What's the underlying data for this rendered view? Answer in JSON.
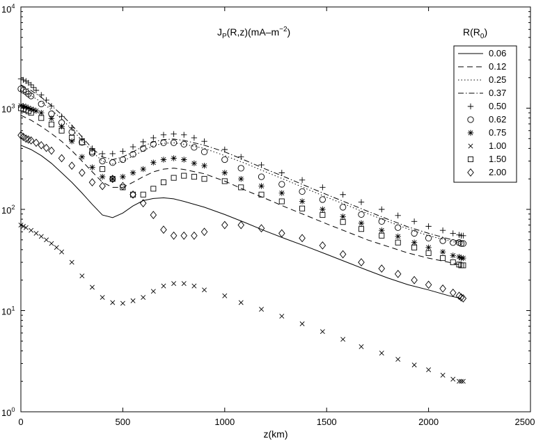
{
  "chart_data": {
    "type": "line",
    "title_main": "J",
    "title_sub": "P",
    "title_rest": "(R,z)(mA–m",
    "title_sup": "−2",
    "title_close": ")",
    "xlabel": "z(km)",
    "ylabel": "",
    "xlim": [
      0,
      2500
    ],
    "ylim": [
      1,
      10000
    ],
    "yscale": "log",
    "x_ticks": [
      "0",
      "500",
      "1000",
      "1500",
      "2000",
      "2500"
    ],
    "y_tick_base": "10",
    "y_tick_exps": [
      "0",
      "1",
      "2",
      "3",
      "4"
    ],
    "grid": false,
    "legend_position": "top-right",
    "legend_title_main": "R(R",
    "legend_title_sub": "0",
    "legend_title_close": ")",
    "series": [
      {
        "name": "0.06",
        "style": "solid",
        "x": [
          0,
          50,
          100,
          150,
          200,
          250,
          300,
          350,
          400,
          450,
          500,
          550,
          600,
          650,
          700,
          750,
          800,
          900,
          1000,
          1100,
          1200,
          1300,
          1400,
          1500,
          1600,
          1700,
          1800,
          1900,
          2000,
          2100,
          2160
        ],
        "y": [
          430,
          390,
          340,
          285,
          230,
          185,
          145,
          112,
          88,
          83,
          92,
          108,
          122,
          128,
          130,
          127,
          120,
          105,
          89,
          74,
          61,
          51,
          43,
          36,
          30,
          25,
          21,
          18,
          16,
          14,
          13.2
        ]
      },
      {
        "name": "0.12",
        "style": "dashed",
        "x": [
          0,
          50,
          100,
          150,
          200,
          250,
          300,
          350,
          400,
          450,
          500,
          550,
          600,
          650,
          700,
          750,
          800,
          900,
          1000,
          1100,
          1200,
          1300,
          1400,
          1500,
          1600,
          1700,
          1800,
          1900,
          2000,
          2100,
          2160
        ],
        "y": [
          850,
          760,
          660,
          560,
          470,
          380,
          300,
          235,
          185,
          165,
          165,
          185,
          210,
          235,
          250,
          255,
          248,
          225,
          190,
          155,
          128,
          105,
          87,
          72,
          60,
          50,
          43,
          37,
          33,
          30,
          28
        ]
      },
      {
        "name": "0.25",
        "style": "dotted",
        "x": [
          0,
          50,
          100,
          150,
          200,
          250,
          300,
          350,
          400,
          450,
          500,
          550,
          600,
          650,
          700,
          750,
          800,
          900,
          1000,
          1100,
          1200,
          1300,
          1400,
          1500,
          1600,
          1700,
          1800,
          1900,
          2000,
          2100,
          2160
        ],
        "y": [
          1500,
          1330,
          1150,
          960,
          780,
          620,
          480,
          370,
          300,
          280,
          300,
          335,
          380,
          425,
          450,
          455,
          440,
          400,
          340,
          285,
          235,
          195,
          160,
          132,
          110,
          91,
          76,
          64,
          55,
          49,
          46
        ]
      },
      {
        "name": "0.37",
        "style": "dashdot",
        "x": [
          0,
          50,
          100,
          150,
          200,
          250,
          300,
          350,
          400,
          450,
          500,
          550,
          600,
          650,
          700,
          750,
          800,
          900,
          1000,
          1100,
          1200,
          1300,
          1400,
          1500,
          1600,
          1700,
          1800,
          1900,
          2000,
          2100,
          2160
        ],
        "y": [
          1700,
          1500,
          1280,
          1060,
          860,
          680,
          520,
          400,
          330,
          310,
          330,
          370,
          420,
          465,
          490,
          495,
          480,
          430,
          370,
          305,
          250,
          207,
          170,
          140,
          116,
          96,
          80,
          67,
          58,
          51,
          48
        ]
      },
      {
        "name": "0.50",
        "marker": "+",
        "x": [
          0,
          12,
          25,
          37,
          50,
          62,
          75,
          100,
          125,
          150,
          200,
          250,
          300,
          350,
          400,
          450,
          500,
          550,
          600,
          650,
          700,
          750,
          800,
          850,
          900,
          1000,
          1080,
          1180,
          1280,
          1380,
          1480,
          1580,
          1670,
          1770,
          1850,
          1930,
          2000,
          2070,
          2120,
          2150,
          2160,
          2170
        ],
        "y": [
          1950,
          1900,
          1850,
          1780,
          1700,
          1600,
          1500,
          1350,
          1200,
          1050,
          830,
          640,
          500,
          400,
          355,
          355,
          375,
          415,
          465,
          510,
          545,
          555,
          545,
          510,
          470,
          390,
          330,
          275,
          230,
          195,
          165,
          140,
          118,
          100,
          87,
          76,
          68,
          62,
          58,
          56,
          55,
          55
        ]
      },
      {
        "name": "0.62",
        "marker": "circle",
        "x": [
          0,
          12,
          25,
          37,
          50,
          100,
          150,
          200,
          250,
          300,
          350,
          400,
          450,
          500,
          550,
          600,
          650,
          700,
          750,
          800,
          850,
          900,
          1000,
          1080,
          1180,
          1280,
          1380,
          1480,
          1580,
          1670,
          1770,
          1850,
          1930,
          2000,
          2070,
          2120,
          2150,
          2160,
          2170
        ],
        "y": [
          1550,
          1500,
          1450,
          1380,
          1320,
          1100,
          880,
          720,
          580,
          460,
          360,
          300,
          290,
          310,
          350,
          400,
          440,
          455,
          455,
          440,
          410,
          370,
          310,
          255,
          210,
          177,
          150,
          125,
          105,
          89,
          76,
          66,
          58,
          52,
          49,
          47,
          47,
          46,
          46
        ]
      },
      {
        "name": "0.75",
        "marker": "asterisk",
        "x": [
          0,
          12,
          25,
          37,
          50,
          62,
          75,
          100,
          150,
          200,
          250,
          300,
          350,
          400,
          450,
          500,
          550,
          600,
          650,
          700,
          750,
          800,
          850,
          900,
          1000,
          1080,
          1180,
          1280,
          1380,
          1480,
          1580,
          1670,
          1770,
          1850,
          1930,
          2000,
          2070,
          2120,
          2150,
          2160,
          2170
        ],
        "y": [
          1060,
          1050,
          1030,
          1000,
          980,
          960,
          940,
          900,
          790,
          660,
          470,
          330,
          260,
          210,
          200,
          210,
          230,
          250,
          290,
          310,
          320,
          310,
          285,
          270,
          230,
          200,
          170,
          145,
          120,
          100,
          85,
          73,
          62,
          54,
          47,
          42,
          38,
          35,
          34,
          33,
          33
        ]
      },
      {
        "name": "1.00",
        "marker": "x",
        "x": [
          0,
          12,
          25,
          50,
          75,
          100,
          125,
          150,
          175,
          200,
          250,
          300,
          350,
          400,
          450,
          500,
          550,
          600,
          650,
          700,
          750,
          800,
          850,
          900,
          1000,
          1080,
          1180,
          1280,
          1380,
          1480,
          1580,
          1670,
          1770,
          1850,
          1930,
          2000,
          2070,
          2120,
          2150,
          2160,
          2170
        ],
        "y": [
          70,
          68,
          66,
          62,
          58,
          54,
          50,
          46,
          42,
          38,
          30,
          22,
          17,
          13.5,
          12,
          11.8,
          12.5,
          13.5,
          15.5,
          17.5,
          18.5,
          18.5,
          17.5,
          16,
          14,
          12,
          10.3,
          8.8,
          7.4,
          6.2,
          5.2,
          4.4,
          3.8,
          3.3,
          2.9,
          2.6,
          2.3,
          2.1,
          2,
          2,
          2
        ]
      },
      {
        "name": "1.50",
        "marker": "square",
        "x": [
          0,
          12,
          25,
          37,
          50,
          100,
          150,
          200,
          250,
          300,
          350,
          400,
          450,
          500,
          550,
          600,
          650,
          700,
          750,
          800,
          850,
          900,
          1000,
          1080,
          1180,
          1280,
          1380,
          1480,
          1580,
          1670,
          1770,
          1850,
          1930,
          2000,
          2070,
          2120,
          2150,
          2160,
          2170
        ],
        "y": [
          1000,
          980,
          960,
          930,
          900,
          800,
          690,
          600,
          510,
          460,
          370,
          250,
          200,
          165,
          140,
          140,
          160,
          185,
          205,
          215,
          210,
          200,
          190,
          165,
          140,
          120,
          102,
          88,
          75,
          64,
          55,
          47,
          42,
          37,
          33,
          30,
          28.5,
          28,
          28
        ]
      },
      {
        "name": "2.00",
        "marker": "diamond",
        "x": [
          0,
          12,
          25,
          37,
          50,
          75,
          100,
          125,
          150,
          200,
          250,
          300,
          350,
          400,
          450,
          500,
          550,
          600,
          650,
          700,
          750,
          800,
          850,
          900,
          1000,
          1080,
          1180,
          1280,
          1380,
          1480,
          1580,
          1670,
          1770,
          1850,
          1930,
          2000,
          2070,
          2120,
          2150,
          2160,
          2170
        ],
        "y": [
          540,
          520,
          500,
          490,
          480,
          455,
          430,
          405,
          380,
          320,
          270,
          230,
          185,
          170,
          200,
          170,
          140,
          115,
          88,
          63,
          55,
          55,
          55,
          60,
          70,
          70,
          65,
          58,
          52,
          44,
          36,
          30,
          26,
          23,
          20,
          18,
          16.5,
          15,
          14,
          13.5,
          13.2
        ]
      }
    ]
  }
}
